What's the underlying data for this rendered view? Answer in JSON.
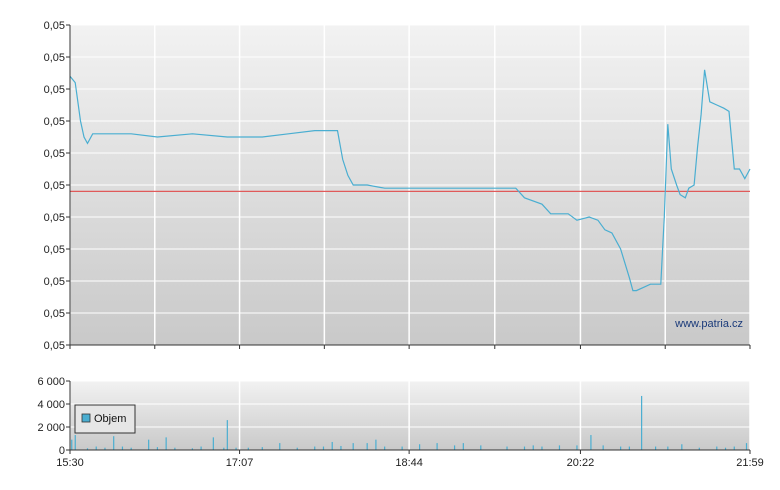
{
  "colors": {
    "price_line": "#4aaed1",
    "reference_line": "#e05a5a",
    "volume_bar": "#4aaed1",
    "plot_bg_top": "#f2f2f2",
    "plot_bg_bottom": "#c9c9c9",
    "grid": "#ffffff",
    "axis": "#333333"
  },
  "watermark": "www.patria.cz",
  "legend": {
    "label": "Objem"
  },
  "chart_data": [
    {
      "type": "line",
      "name": "price",
      "x_ticks": [
        "15:30",
        "17:07",
        "18:44",
        "20:22",
        "21:59"
      ],
      "y_ticks": [
        "0,05",
        "0,05",
        "0,05",
        "0,05",
        "0,05",
        "0,05",
        "0,05",
        "0,05",
        "0,05",
        "0,05",
        "0,05"
      ],
      "ylim": [
        0,
        10
      ],
      "reference_value": 4.8,
      "grid": true,
      "legend": "none",
      "points": [
        [
          "15:30",
          8.4
        ],
        [
          "15:33",
          8.2
        ],
        [
          "15:36",
          7.0
        ],
        [
          "15:38",
          6.5
        ],
        [
          "15:40",
          6.3
        ],
        [
          "15:43",
          6.6
        ],
        [
          "15:50",
          6.6
        ],
        [
          "16:05",
          6.6
        ],
        [
          "16:20",
          6.5
        ],
        [
          "16:40",
          6.6
        ],
        [
          "17:00",
          6.5
        ],
        [
          "17:20",
          6.5
        ],
        [
          "17:35",
          6.6
        ],
        [
          "17:50",
          6.7
        ],
        [
          "18:03",
          6.7
        ],
        [
          "18:06",
          5.8
        ],
        [
          "18:09",
          5.3
        ],
        [
          "18:12",
          5.0
        ],
        [
          "18:20",
          5.0
        ],
        [
          "18:30",
          4.9
        ],
        [
          "18:50",
          4.9
        ],
        [
          "19:10",
          4.9
        ],
        [
          "19:30",
          4.9
        ],
        [
          "19:45",
          4.9
        ],
        [
          "19:50",
          4.6
        ],
        [
          "20:00",
          4.4
        ],
        [
          "20:05",
          4.1
        ],
        [
          "20:15",
          4.1
        ],
        [
          "20:20",
          3.9
        ],
        [
          "20:27",
          4.0
        ],
        [
          "20:32",
          3.9
        ],
        [
          "20:36",
          3.6
        ],
        [
          "20:40",
          3.5
        ],
        [
          "20:45",
          3.0
        ],
        [
          "20:50",
          2.1
        ],
        [
          "20:52",
          1.7
        ],
        [
          "20:54",
          1.7
        ],
        [
          "20:58",
          1.8
        ],
        [
          "21:02",
          1.9
        ],
        [
          "21:05",
          1.9
        ],
        [
          "21:08",
          1.9
        ],
        [
          "21:09",
          3.0
        ],
        [
          "21:10",
          4.0
        ],
        [
          "21:12",
          6.9
        ],
        [
          "21:14",
          5.5
        ],
        [
          "21:17",
          5.0
        ],
        [
          "21:19",
          4.7
        ],
        [
          "21:22",
          4.6
        ],
        [
          "21:24",
          4.9
        ],
        [
          "21:27",
          5.0
        ],
        [
          "21:29",
          6.2
        ],
        [
          "21:31",
          7.2
        ],
        [
          "21:33",
          8.6
        ],
        [
          "21:36",
          7.6
        ],
        [
          "21:40",
          7.5
        ],
        [
          "21:44",
          7.4
        ],
        [
          "21:47",
          7.3
        ],
        [
          "21:50",
          5.5
        ],
        [
          "21:53",
          5.5
        ],
        [
          "21:56",
          5.2
        ],
        [
          "21:59",
          5.5
        ]
      ]
    },
    {
      "type": "bar",
      "name": "volume",
      "series_name": "Objem",
      "x_ticks": [
        "15:30",
        "17:07",
        "18:44",
        "20:22",
        "21:59"
      ],
      "y_ticks": [
        "0",
        "2 000",
        "4 000",
        "6 000"
      ],
      "ylim": [
        0,
        6000
      ],
      "grid": true,
      "legend": "left",
      "bars": [
        [
          "15:31",
          900
        ],
        [
          "15:33",
          1300
        ],
        [
          "15:40",
          150
        ],
        [
          "15:45",
          300
        ],
        [
          "15:50",
          200
        ],
        [
          "15:55",
          1200
        ],
        [
          "16:00",
          300
        ],
        [
          "16:05",
          200
        ],
        [
          "16:15",
          900
        ],
        [
          "16:20",
          250
        ],
        [
          "16:25",
          1100
        ],
        [
          "16:30",
          200
        ],
        [
          "16:40",
          150
        ],
        [
          "16:45",
          300
        ],
        [
          "16:52",
          1100
        ],
        [
          "16:58",
          200
        ],
        [
          "17:00",
          2600
        ],
        [
          "17:05",
          200
        ],
        [
          "17:12",
          200
        ],
        [
          "17:20",
          250
        ],
        [
          "17:30",
          600
        ],
        [
          "17:40",
          200
        ],
        [
          "17:50",
          300
        ],
        [
          "17:55",
          300
        ],
        [
          "18:00",
          700
        ],
        [
          "18:05",
          350
        ],
        [
          "18:12",
          600
        ],
        [
          "18:20",
          600
        ],
        [
          "18:25",
          900
        ],
        [
          "18:30",
          300
        ],
        [
          "18:40",
          300
        ],
        [
          "18:50",
          500
        ],
        [
          "19:00",
          600
        ],
        [
          "19:10",
          400
        ],
        [
          "19:15",
          600
        ],
        [
          "19:25",
          400
        ],
        [
          "19:40",
          300
        ],
        [
          "19:50",
          300
        ],
        [
          "19:55",
          400
        ],
        [
          "20:00",
          300
        ],
        [
          "20:10",
          400
        ],
        [
          "20:20",
          400
        ],
        [
          "20:28",
          1300
        ],
        [
          "20:35",
          400
        ],
        [
          "20:45",
          300
        ],
        [
          "20:50",
          300
        ],
        [
          "20:57",
          4700
        ],
        [
          "21:05",
          300
        ],
        [
          "21:12",
          300
        ],
        [
          "21:20",
          500
        ],
        [
          "21:30",
          200
        ],
        [
          "21:40",
          300
        ],
        [
          "21:45",
          200
        ],
        [
          "21:50",
          300
        ],
        [
          "21:57",
          600
        ]
      ]
    }
  ]
}
